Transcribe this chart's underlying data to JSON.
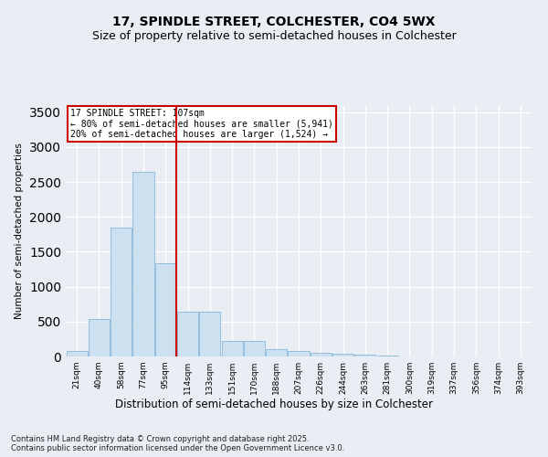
{
  "title_line1": "17, SPINDLE STREET, COLCHESTER, CO4 5WX",
  "title_line2": "Size of property relative to semi-detached houses in Colchester",
  "xlabel": "Distribution of semi-detached houses by size in Colchester",
  "ylabel": "Number of semi-detached properties",
  "footnote": "Contains HM Land Registry data © Crown copyright and database right 2025.\nContains public sector information licensed under the Open Government Licence v3.0.",
  "categories": [
    "21sqm",
    "40sqm",
    "58sqm",
    "77sqm",
    "95sqm",
    "114sqm",
    "133sqm",
    "151sqm",
    "170sqm",
    "188sqm",
    "207sqm",
    "226sqm",
    "244sqm",
    "263sqm",
    "281sqm",
    "300sqm",
    "319sqm",
    "337sqm",
    "356sqm",
    "374sqm",
    "393sqm"
  ],
  "values": [
    75,
    535,
    1850,
    2640,
    1330,
    645,
    645,
    220,
    220,
    110,
    75,
    55,
    35,
    20,
    10,
    5,
    3,
    2,
    1,
    1,
    1
  ],
  "bar_color": "#cce0f0",
  "bar_edge_color": "#88b8d8",
  "vline_color": "#cc0000",
  "annotation_title": "17 SPINDLE STREET: 107sqm",
  "annotation_line2": "← 80% of semi-detached houses are smaller (5,941)",
  "annotation_line3": "20% of semi-detached houses are larger (1,524) →",
  "annotation_box_color": "#cc0000",
  "annotation_bg": "#ffffff",
  "ylim": [
    0,
    3600
  ],
  "yticks": [
    0,
    500,
    1000,
    1500,
    2000,
    2500,
    3000,
    3500
  ],
  "background_color": "#e8eef4",
  "plot_bg_color": "#e8eef4",
  "grid_color": "#ffffff",
  "title_fontsize": 10,
  "subtitle_fontsize": 9
}
